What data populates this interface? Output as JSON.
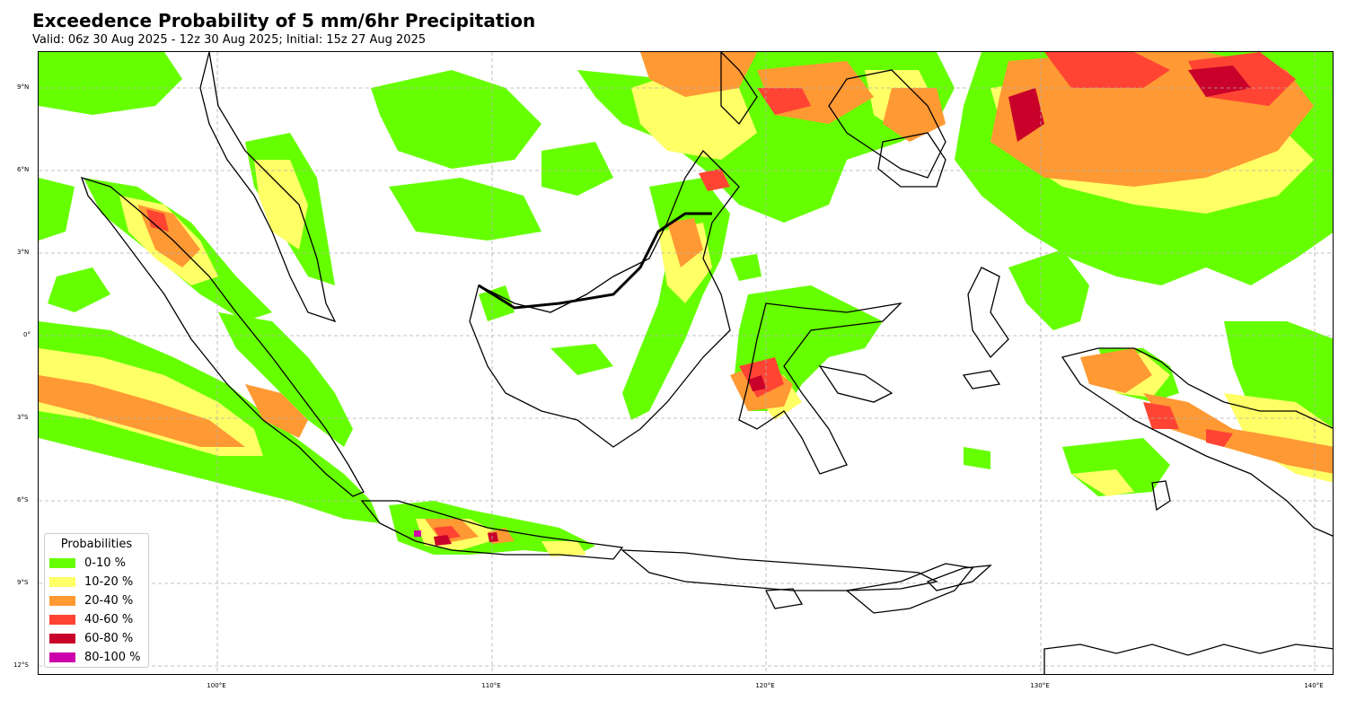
{
  "header": {
    "title": "Exceedence Probability of 5 mm/6hr Precipitation",
    "subtitle": "Valid: 06z 30 Aug 2025 - 12z 30 Aug 2025; Initial: 15z 27 Aug 2025"
  },
  "map": {
    "lat_labels": [
      "9°N",
      "6°N",
      "3°N",
      "0°",
      "3°S",
      "6°S",
      "9°S",
      "12°S"
    ],
    "lon_labels": [
      "100°E",
      "110°E",
      "120°E",
      "130°E",
      "140°E"
    ],
    "gridlines": "dashed",
    "colors": {
      "coast": "#000000",
      "grid": "#b0b0b0"
    }
  },
  "legend": {
    "title": "Probabilities",
    "items": [
      {
        "label": "0-10 %",
        "color": "#66ff00"
      },
      {
        "label": "10-20 %",
        "color": "#ffff66"
      },
      {
        "label": "20-40 %",
        "color": "#ff9933"
      },
      {
        "label": "40-60 %",
        "color": "#ff4433"
      },
      {
        "label": "60-80 %",
        "color": "#c8002a"
      },
      {
        "label": "80-100 %",
        "color": "#cc00aa"
      }
    ]
  }
}
